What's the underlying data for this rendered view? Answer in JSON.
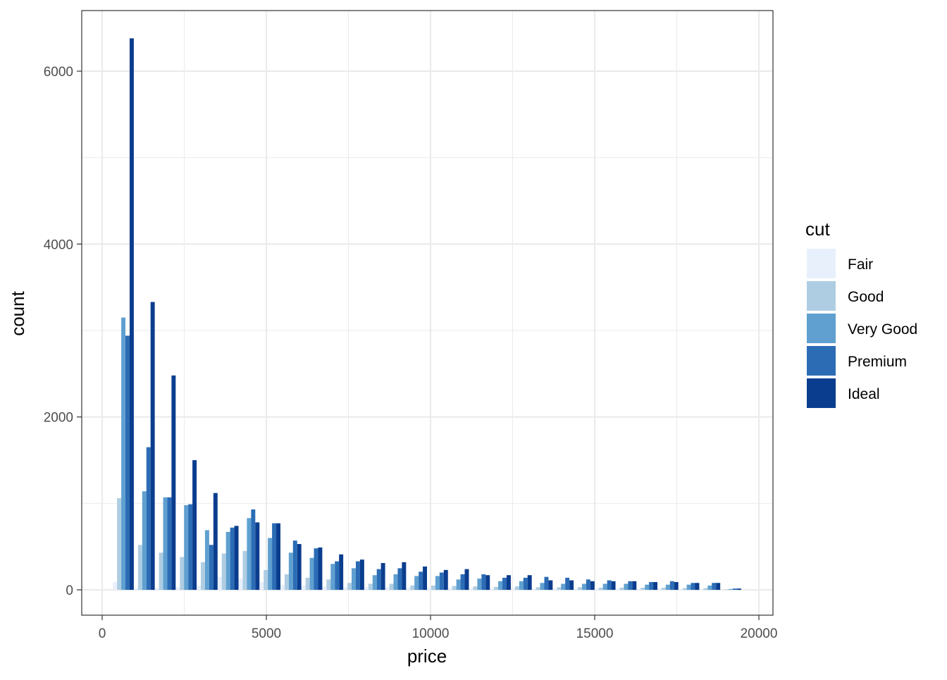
{
  "chart_data": {
    "type": "histogram",
    "x_label": "price",
    "y_label": "count",
    "legend_title": "cut",
    "bins": [
      326,
      964,
      1602,
      2239,
      2877,
      3515,
      4153,
      4791,
      5429,
      6066,
      6704,
      7342,
      7980,
      8618,
      9256,
      9893,
      10531,
      11169,
      11807,
      12445,
      13083,
      13720,
      14358,
      14996,
      15634,
      16272,
      16910,
      17547,
      18185,
      18823,
      19461
    ],
    "series": [
      {
        "name": "Fair",
        "color": "#e8f0fc",
        "values": [
          90,
          20,
          20,
          30,
          50,
          150,
          130,
          90,
          60,
          50,
          40,
          30,
          30,
          30,
          25,
          25,
          20,
          20,
          20,
          20,
          15,
          15,
          15,
          15,
          15,
          15,
          15,
          10,
          10,
          2
        ]
      },
      {
        "name": "Good",
        "color": "#afcde2",
        "values": [
          1060,
          520,
          430,
          380,
          320,
          420,
          450,
          230,
          180,
          140,
          120,
          80,
          70,
          70,
          50,
          50,
          45,
          40,
          35,
          40,
          30,
          30,
          30,
          25,
          25,
          25,
          25,
          20,
          20,
          5
        ]
      },
      {
        "name": "Very Good",
        "color": "#5fa0d0",
        "values": [
          3150,
          1140,
          1070,
          980,
          690,
          670,
          830,
          600,
          430,
          370,
          300,
          250,
          170,
          180,
          160,
          160,
          120,
          130,
          100,
          100,
          80,
          70,
          70,
          70,
          70,
          60,
          60,
          60,
          50,
          10
        ]
      },
      {
        "name": "Premium",
        "color": "#2b6cb5",
        "values": [
          2940,
          1650,
          1070,
          990,
          520,
          720,
          930,
          770,
          570,
          480,
          330,
          330,
          240,
          250,
          210,
          200,
          180,
          180,
          140,
          140,
          150,
          140,
          120,
          110,
          100,
          90,
          100,
          80,
          80,
          15
        ]
      },
      {
        "name": "Ideal",
        "color": "#0b3d8e",
        "values": [
          6380,
          3330,
          2480,
          1500,
          1120,
          740,
          780,
          770,
          530,
          490,
          410,
          350,
          310,
          320,
          270,
          230,
          240,
          170,
          170,
          170,
          110,
          110,
          100,
          100,
          100,
          90,
          90,
          80,
          80,
          15
        ]
      }
    ],
    "xlim": [
      -622,
      20429
    ],
    "ylim": [
      -293,
      6701
    ],
    "xticks": [
      0,
      5000,
      10000,
      15000,
      20000
    ],
    "yticks": [
      0,
      2000,
      4000,
      6000
    ],
    "xminor": [
      2500,
      7500,
      12500,
      17500
    ],
    "yminor": [
      1000,
      3000,
      5000
    ],
    "grid": true,
    "legend": "right"
  }
}
